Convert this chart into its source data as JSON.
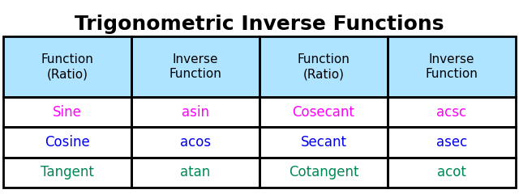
{
  "title": "Trigonometric Inverse Functions",
  "title_fontsize": 18,
  "title_fontweight": "bold",
  "title_color": "#000000",
  "background_color": "#ffffff",
  "header_bg_color": "#aee4ff",
  "row_bg_color": "#ffffff",
  "border_color": "#000000",
  "header_text_color": "#000000",
  "headers": [
    "Function\n(Ratio)",
    "Inverse\nFunction",
    "Function\n(Ratio)",
    "Inverse\nFunction"
  ],
  "rows": [
    [
      "Sine",
      "asin",
      "Cosecant",
      "acsc"
    ],
    [
      "Cosine",
      "acos",
      "Secant",
      "asec"
    ],
    [
      "Tangent",
      "atan",
      "Cotangent",
      "acot"
    ]
  ],
  "row_colors": [
    [
      "#ff00ff",
      "#ff00ff",
      "#ff00ff",
      "#ff00ff"
    ],
    [
      "#0000ee",
      "#0000ee",
      "#0000ee",
      "#0000ee"
    ],
    [
      "#008855",
      "#008855",
      "#008855",
      "#008855"
    ]
  ],
  "header_fontsize": 11,
  "cell_fontsize": 12
}
